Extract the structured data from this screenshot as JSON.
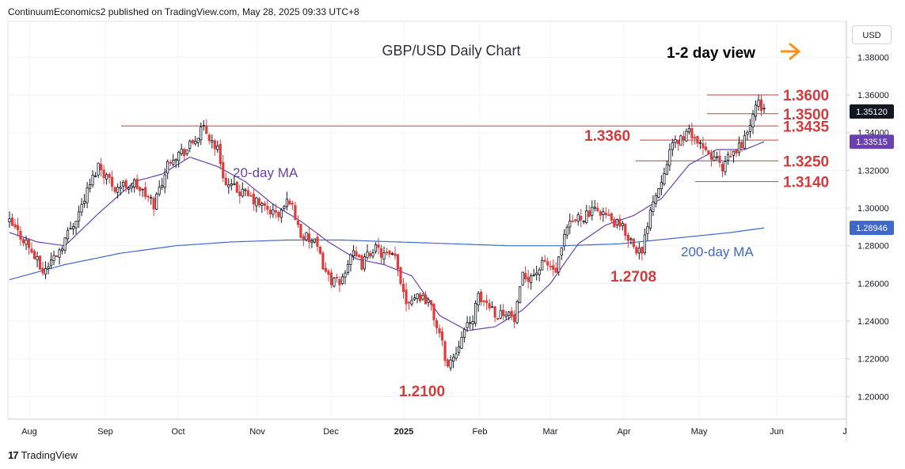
{
  "header": {
    "published": "ContinuumEconomics2 published on TradingView.com, May 28, 2025 09:33 UTC+8"
  },
  "footer": {
    "brand": "TradingView"
  },
  "currency_button": "USD",
  "colors": {
    "up_candle": "#131722",
    "down_candle": "#e03c3c",
    "ma20": "#6a41b0",
    "ma200": "#3f68c8",
    "level_lines": "#d23c3c",
    "level_labels": "#d23c3c",
    "arrow": "#f7931a"
  },
  "chart_data": {
    "type": "candlestick",
    "title": "GBP/USD Daily Chart",
    "subtitle": "1-2 day view",
    "x_ticks": [
      "Aug",
      "Sep",
      "Oct",
      "Nov",
      "Dec",
      "2025",
      "Feb",
      "Mar",
      "Apr",
      "May",
      "Jun",
      "J"
    ],
    "y_ticks": [
      "1.38000",
      "1.36000",
      "1.34000",
      "1.32000",
      "1.30000",
      "1.28000",
      "1.26000",
      "1.24000",
      "1.22000",
      "1.20000"
    ],
    "ylim": [
      1.188,
      1.399
    ],
    "last_price": {
      "label": "1.35120",
      "value": 1.3512
    },
    "ma20": {
      "name": "20-day MA",
      "label": "1.33515",
      "value": 1.33515
    },
    "ma200": {
      "name": "200-day MA",
      "label": "1.28946",
      "value": 1.28946
    },
    "levels": [
      {
        "label": "1.3600",
        "value": 1.36
      },
      {
        "label": "1.3500",
        "value": 1.35
      },
      {
        "label": "1.3435",
        "value": 1.3435
      },
      {
        "label": "1.3360",
        "value": 1.336
      },
      {
        "label": "1.3250",
        "value": 1.325
      },
      {
        "label": "1.3140",
        "value": 1.314
      }
    ],
    "annotations": [
      {
        "label": "1.2708",
        "value": 1.2708
      },
      {
        "label": "1.2100",
        "value": 1.21
      }
    ],
    "close_path": [
      [
        0,
        1.292
      ],
      [
        6,
        1.282
      ],
      [
        12,
        1.266
      ],
      [
        18,
        1.278
      ],
      [
        25,
        1.298
      ],
      [
        32,
        1.323
      ],
      [
        38,
        1.311
      ],
      [
        45,
        1.313
      ],
      [
        52,
        1.302
      ],
      [
        58,
        1.327
      ],
      [
        64,
        1.331
      ],
      [
        70,
        1.342
      ],
      [
        75,
        1.331
      ],
      [
        78,
        1.312
      ],
      [
        84,
        1.308
      ],
      [
        92,
        1.3
      ],
      [
        97,
        1.296
      ],
      [
        101,
        1.305
      ],
      [
        105,
        1.286
      ],
      [
        110,
        1.281
      ],
      [
        115,
        1.263
      ],
      [
        119,
        1.259
      ],
      [
        123,
        1.276
      ],
      [
        127,
        1.27
      ],
      [
        131,
        1.279
      ],
      [
        135,
        1.275
      ],
      [
        139,
        1.273
      ],
      [
        143,
        1.251
      ],
      [
        147,
        1.254
      ],
      [
        151,
        1.251
      ],
      [
        155,
        1.233
      ],
      [
        158,
        1.216
      ],
      [
        161,
        1.224
      ],
      [
        163,
        1.234
      ],
      [
        166,
        1.238
      ],
      [
        169,
        1.252
      ],
      [
        173,
        1.249
      ],
      [
        176,
        1.243
      ],
      [
        179,
        1.246
      ],
      [
        182,
        1.24
      ],
      [
        185,
        1.263
      ],
      [
        189,
        1.265
      ],
      [
        193,
        1.271
      ],
      [
        197,
        1.266
      ],
      [
        201,
        1.289
      ],
      [
        205,
        1.295
      ],
      [
        209,
        1.297
      ],
      [
        213,
        1.299
      ],
      [
        217,
        1.293
      ],
      [
        221,
        1.289
      ],
      [
        225,
        1.281
      ],
      [
        228,
        1.275
      ],
      [
        231,
        1.301
      ],
      [
        234,
        1.311
      ],
      [
        237,
        1.326
      ],
      [
        240,
        1.335
      ],
      [
        243,
        1.338
      ],
      [
        246,
        1.34
      ],
      [
        249,
        1.332
      ],
      [
        252,
        1.328
      ],
      [
        255,
        1.326
      ],
      [
        257,
        1.319
      ],
      [
        259,
        1.326
      ],
      [
        262,
        1.33
      ],
      [
        265,
        1.337
      ],
      [
        268,
        1.348
      ],
      [
        270,
        1.357
      ],
      [
        272,
        1.3512
      ]
    ],
    "ma20_path": [
      [
        0,
        1.287
      ],
      [
        10,
        1.282
      ],
      [
        20,
        1.28
      ],
      [
        32,
        1.297
      ],
      [
        45,
        1.314
      ],
      [
        55,
        1.318
      ],
      [
        65,
        1.327
      ],
      [
        75,
        1.322
      ],
      [
        85,
        1.314
      ],
      [
        95,
        1.302
      ],
      [
        105,
        1.293
      ],
      [
        115,
        1.282
      ],
      [
        125,
        1.273
      ],
      [
        135,
        1.27
      ],
      [
        145,
        1.264
      ],
      [
        155,
        1.243
      ],
      [
        165,
        1.235
      ],
      [
        175,
        1.237
      ],
      [
        185,
        1.246
      ],
      [
        195,
        1.26
      ],
      [
        205,
        1.281
      ],
      [
        215,
        1.291
      ],
      [
        225,
        1.296
      ],
      [
        235,
        1.305
      ],
      [
        245,
        1.323
      ],
      [
        255,
        1.331
      ],
      [
        265,
        1.331
      ],
      [
        272,
        1.33515
      ]
    ],
    "ma200_path": [
      [
        0,
        1.262
      ],
      [
        20,
        1.27
      ],
      [
        40,
        1.276
      ],
      [
        60,
        1.28
      ],
      [
        80,
        1.282
      ],
      [
        100,
        1.283
      ],
      [
        120,
        1.283
      ],
      [
        140,
        1.282
      ],
      [
        160,
        1.281
      ],
      [
        180,
        1.28
      ],
      [
        200,
        1.28
      ],
      [
        220,
        1.281
      ],
      [
        240,
        1.284
      ],
      [
        260,
        1.287
      ],
      [
        272,
        1.28946
      ]
    ]
  }
}
